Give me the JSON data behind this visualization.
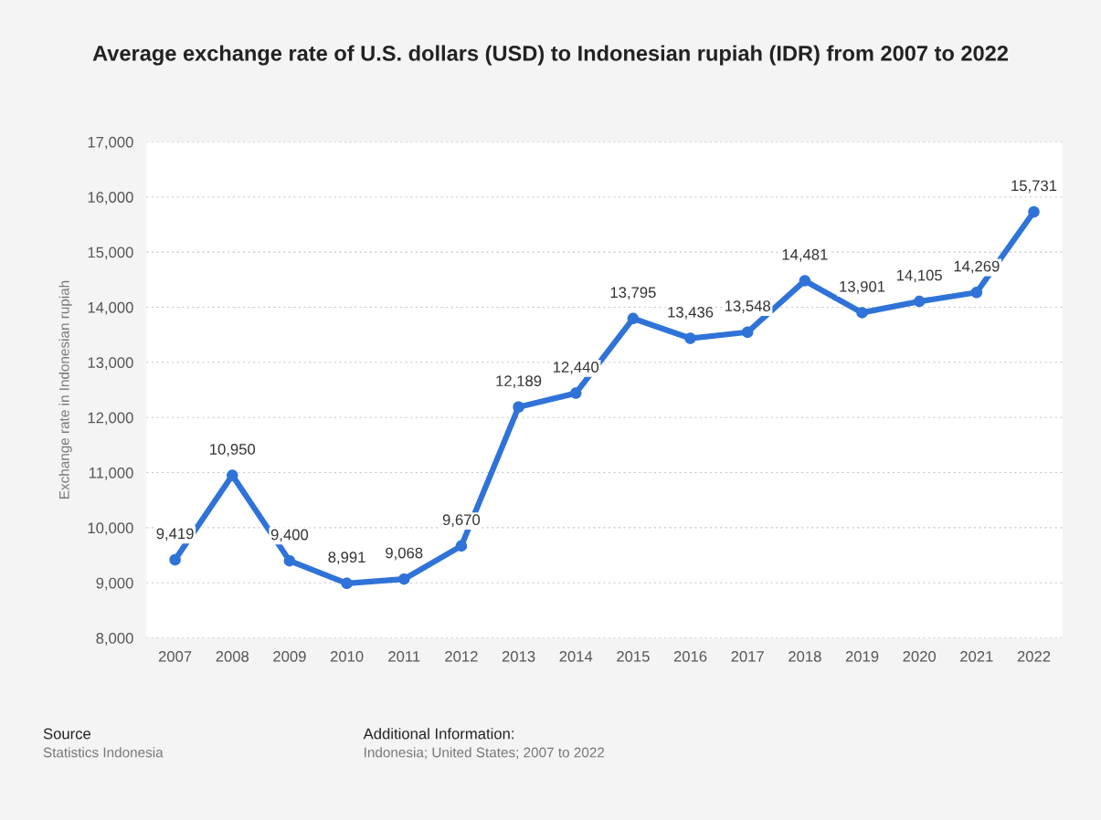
{
  "chart_data": {
    "type": "line",
    "title": "Average exchange rate of U.S. dollars (USD) to Indonesian rupiah (IDR) from 2007 to 2022",
    "ylabel": "Exchange rate in Indonesian rupiah",
    "categories": [
      "2007",
      "2008",
      "2009",
      "2010",
      "2011",
      "2012",
      "2013",
      "2014",
      "2015",
      "2016",
      "2017",
      "2018",
      "2019",
      "2020",
      "2021",
      "2022"
    ],
    "series": [
      {
        "color": "#2f73d8",
        "values": [
          9419,
          10950,
          9400,
          8991,
          9068,
          9670,
          12189,
          12440,
          13795,
          13436,
          13548,
          14481,
          13901,
          14105,
          14269,
          15731
        ],
        "value_labels": [
          "9,419",
          "10,950",
          "9,400",
          "8,991",
          "9,068",
          "9,670",
          "12,189",
          "12,440",
          "13,795",
          "13,436",
          "13,548",
          "14,481",
          "13,901",
          "14,105",
          "14,269",
          "15,731"
        ]
      }
    ],
    "ylim": [
      8000,
      17000
    ],
    "yticks": [
      {
        "value": 8000,
        "label": "8,000"
      },
      {
        "value": 9000,
        "label": "9,000"
      },
      {
        "value": 10000,
        "label": "10,000"
      },
      {
        "value": 11000,
        "label": "11,000"
      },
      {
        "value": 12000,
        "label": "12,000"
      },
      {
        "value": 13000,
        "label": "13,000"
      },
      {
        "value": 14000,
        "label": "14,000"
      },
      {
        "value": 15000,
        "label": "15,000"
      },
      {
        "value": 16000,
        "label": "16,000"
      },
      {
        "value": 17000,
        "label": "17,000"
      }
    ],
    "grid": "y",
    "marker": "circle",
    "line_style": "solid",
    "annotations": [
      "Source",
      "Statistics Indonesia",
      "Additional Information:",
      "Indonesia; United States; 2007 to 2022"
    ]
  }
}
